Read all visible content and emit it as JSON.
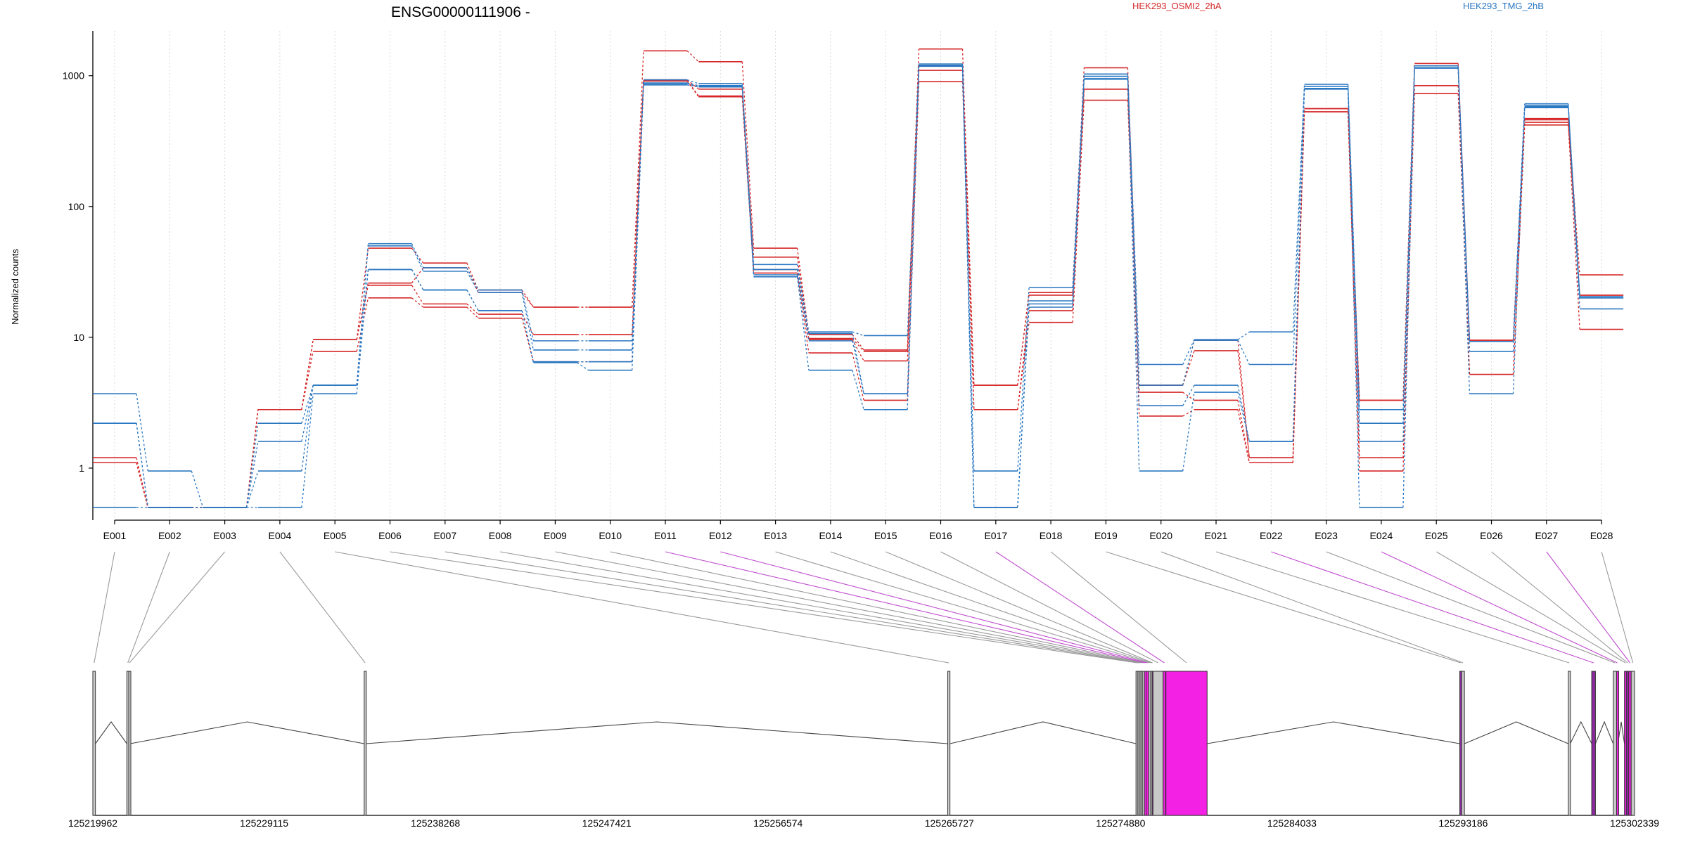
{
  "chart_data": {
    "type": "line",
    "title": "ENSG00000111906 -",
    "ylabel": "Normalized counts",
    "xlabel": "",
    "yscale": "log",
    "ylim": [
      0.4,
      2200
    ],
    "yticks": [
      1,
      10,
      100,
      1000
    ],
    "ytick_labels": [
      "1",
      "10",
      "100",
      "1000"
    ],
    "grid": "vertical-dotted",
    "legend_position": "top",
    "categories": [
      "E001",
      "E002",
      "E003",
      "E004",
      "E005",
      "E006",
      "E007",
      "E008",
      "E009",
      "E010",
      "E011",
      "E012",
      "E013",
      "E014",
      "E015",
      "E016",
      "E017",
      "E018",
      "E019",
      "E020",
      "E021",
      "E022",
      "E023",
      "E024",
      "E025",
      "E026",
      "E027",
      "E028"
    ],
    "legend": [
      {
        "label": "HEK293_OSMI2_2hA",
        "color": "#d62728"
      },
      {
        "label": "HEK293_TMG_2hB",
        "color": "#2b78c2"
      }
    ],
    "series": [
      {
        "group": "red",
        "color": "#d62728",
        "values": [
          1.2,
          0.5,
          0.5,
          2.8,
          9.6,
          48,
          37,
          23,
          17,
          17,
          1550,
          1280,
          48,
          10.5,
          8,
          1600,
          4.3,
          22,
          1150,
          4.3,
          9.5,
          1.2,
          560,
          3.3,
          1240,
          9.5,
          470,
          30
        ]
      },
      {
        "group": "red",
        "color": "#d62728",
        "values": [
          1.1,
          0.5,
          0.5,
          2.8,
          9.6,
          26,
          34,
          22,
          17,
          17,
          930,
          790,
          41,
          9.8,
          7.8,
          1100,
          4.3,
          21,
          790,
          4.3,
          7.9,
          1.2,
          530,
          3.3,
          1190,
          9.5,
          460,
          21
        ]
      },
      {
        "group": "red",
        "color": "#d62728",
        "values": [
          1.1,
          0.5,
          0.5,
          2.8,
          9.6,
          25,
          18,
          15,
          10.5,
          10.5,
          920,
          700,
          33,
          9.6,
          6.6,
          1200,
          2.8,
          16,
          790,
          3.8,
          3.3,
          1.1,
          560,
          1.2,
          840,
          5.2,
          440,
          21
        ]
      },
      {
        "group": "red",
        "color": "#d62728",
        "values": [
          1.1,
          0.5,
          0.5,
          2.8,
          7.8,
          20,
          17,
          14,
          6.5,
          6.5,
          910,
          690,
          31,
          7.6,
          3.3,
          900,
          2.8,
          13,
          650,
          2.5,
          2.8,
          1.1,
          530,
          0.95,
          730,
          5.2,
          420,
          11.5
        ]
      },
      {
        "group": "blue",
        "color": "#2b78c2",
        "values": [
          3.7,
          0.95,
          0.5,
          2.2,
          4.3,
          52,
          34,
          23,
          9.4,
          9.4,
          930,
          870,
          36,
          11,
          10.3,
          1230,
          0.95,
          24,
          1030,
          6.2,
          9.6,
          11,
          860,
          2.8,
          1190,
          9.3,
          610,
          20.5
        ]
      },
      {
        "group": "blue",
        "color": "#2b78c2",
        "values": [
          2.2,
          0.5,
          0.5,
          1.6,
          4.3,
          50,
          32,
          22,
          8,
          8,
          880,
          840,
          33,
          10.7,
          3.7,
          1200,
          0.5,
          19,
          990,
          4.3,
          9.5,
          6.2,
          830,
          2.2,
          1150,
          9.3,
          590,
          20
        ]
      },
      {
        "group": "blue",
        "color": "#2b78c2",
        "values": [
          2.2,
          0.5,
          0.5,
          0.95,
          4.3,
          33,
          23,
          16,
          6.5,
          6.5,
          870,
          830,
          30,
          9.4,
          3.7,
          1190,
          0.5,
          18,
          950,
          3,
          4.3,
          1.6,
          800,
          1.6,
          1150,
          7.8,
          580,
          20
        ]
      },
      {
        "group": "blue",
        "color": "#2b78c2",
        "values": [
          0.5,
          0.5,
          0.5,
          0.5,
          3.7,
          33,
          23,
          16,
          6.4,
          5.6,
          850,
          820,
          29,
          5.6,
          2.8,
          1180,
          0.5,
          17,
          940,
          0.95,
          3.8,
          1.6,
          790,
          0.5,
          1140,
          3.7,
          570,
          16.5
        ]
      }
    ]
  },
  "gene_model": {
    "axis_ticks": [
      "125219962",
      "125229115",
      "125238268",
      "125247421",
      "125256574",
      "125265727",
      "125274880",
      "125284033",
      "125293186",
      "125302339"
    ],
    "highlight_color": "#f321e3",
    "highlight_dark_color": "#8b2a9e",
    "exon_gray_color": "#c9c9c9",
    "exons": [
      {
        "id": "E001",
        "start": 125219962,
        "end": 125220100,
        "type": "gray"
      },
      {
        "id": "E002",
        "start": 125221780,
        "end": 125221880,
        "type": "gray"
      },
      {
        "id": "E003",
        "start": 125221880,
        "end": 125221960,
        "type": "gray"
      },
      {
        "id": "E004",
        "start": 125234460,
        "end": 125234560,
        "type": "gray"
      },
      {
        "id": "E005",
        "start": 125265640,
        "end": 125265760,
        "type": "gray"
      },
      {
        "id": "E006",
        "start": 125275700,
        "end": 125275800,
        "type": "gray"
      },
      {
        "id": "E007",
        "start": 125275800,
        "end": 125275880,
        "type": "gray"
      },
      {
        "id": "E008",
        "start": 125275880,
        "end": 125275960,
        "type": "gray"
      },
      {
        "id": "E009",
        "start": 125275960,
        "end": 125276040,
        "type": "gray"
      },
      {
        "id": "E010",
        "start": 125276040,
        "end": 125276150,
        "type": "gray"
      },
      {
        "id": "E011",
        "start": 125276150,
        "end": 125276250,
        "type": "pink"
      },
      {
        "id": "E012",
        "start": 125276250,
        "end": 125276380,
        "type": "pink"
      },
      {
        "id": "E013",
        "start": 125276380,
        "end": 125276480,
        "type": "gray"
      },
      {
        "id": "E014",
        "start": 125276480,
        "end": 125276560,
        "type": "gray"
      },
      {
        "id": "E015",
        "start": 125276560,
        "end": 125276610,
        "type": "dark"
      },
      {
        "id": "E016",
        "start": 125276610,
        "end": 125277150,
        "type": "gray"
      },
      {
        "id": "E017",
        "start": 125277150,
        "end": 125277280,
        "type": "pink"
      },
      {
        "id": "E018",
        "start": 125277300,
        "end": 125279500,
        "type": "pink"
      },
      {
        "id": "E019",
        "start": 125293000,
        "end": 125293100,
        "type": "dark"
      },
      {
        "id": "E020",
        "start": 125293100,
        "end": 125293250,
        "type": "gray"
      },
      {
        "id": "E021",
        "start": 125298800,
        "end": 125298900,
        "type": "gray"
      },
      {
        "id": "E022",
        "start": 125300050,
        "end": 125300250,
        "type": "dark"
      },
      {
        "id": "E023",
        "start": 125301200,
        "end": 125301380,
        "type": "gray"
      },
      {
        "id": "E024",
        "start": 125301380,
        "end": 125301450,
        "type": "pink"
      },
      {
        "id": "E025",
        "start": 125301800,
        "end": 125301900,
        "type": "pink"
      },
      {
        "id": "E026",
        "start": 125301900,
        "end": 125302030,
        "type": "dark"
      },
      {
        "id": "E027",
        "start": 125302030,
        "end": 125302160,
        "type": "pink"
      },
      {
        "id": "E028",
        "start": 125302160,
        "end": 125302339,
        "type": "gray"
      }
    ],
    "introns": [
      [
        125220100,
        125221780
      ],
      [
        125221960,
        125234460
      ],
      [
        125234560,
        125265640
      ],
      [
        125265760,
        125275700
      ],
      [
        125279500,
        125293000
      ],
      [
        125293250,
        125298800
      ],
      [
        125298900,
        125300050
      ],
      [
        125300250,
        125301200
      ],
      [
        125301450,
        125301800
      ]
    ],
    "connector_colors": {
      "normal": "#9a9a9a",
      "highlight": "#c04ccf"
    },
    "highlight_connectors": [
      "E011",
      "E012",
      "E017",
      "E022",
      "E024",
      "E027"
    ]
  }
}
